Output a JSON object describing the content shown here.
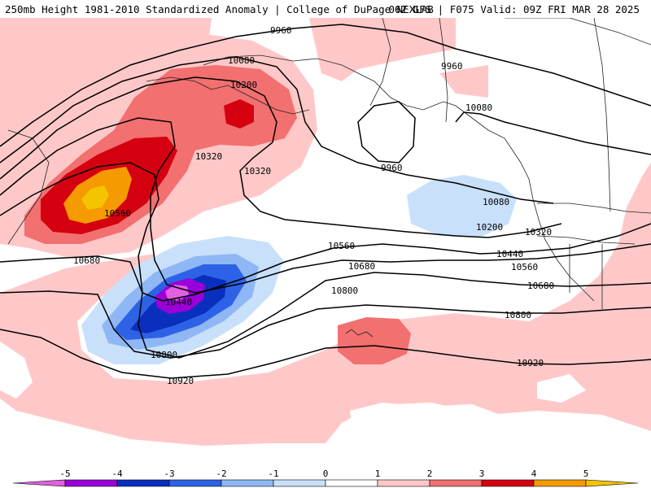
{
  "header": {
    "title": "250mb Height 1981-2010 Standardized Anomaly | College of DuPage NEXLAB",
    "run_info": "06Z GFS | F075 Valid: 09Z FRI MAR 28 2025"
  },
  "contour_labels": [
    "9960",
    "10080",
    "10200",
    "10320",
    "10440",
    "10560",
    "10680",
    "10800",
    "10920"
  ],
  "map_labels": {
    "l9960a": "9960",
    "l9960b": "9960",
    "l9960c": "9960",
    "l10080a": "10080",
    "l10080b": "10080",
    "l10080c": "10080",
    "l10200a": "10200",
    "l10200b": "10200",
    "l10320a": "10320",
    "l10320b": "10320",
    "l10320c": "10320",
    "l10440a": "10440",
    "l10440b": "10440",
    "l10560a": "10560",
    "l10560b": "10560",
    "l10560c": "10560",
    "l10680a": "10680",
    "l10680b": "10680",
    "l10680c": "10680",
    "l10800a": "10800",
    "l10800b": "10800",
    "l10800c": "10800",
    "l10920a": "10920",
    "l10920b": "10920"
  },
  "colorbar": {
    "ticks": [
      "-5",
      "-4",
      "-3",
      "-2",
      "-1",
      "0",
      "1",
      "2",
      "3",
      "4",
      "5"
    ],
    "colors": [
      "#e060e0",
      "#9a00d8",
      "#0a2fbf",
      "#2e62e6",
      "#8fb7f5",
      "#c9e0fa",
      "#ffffff",
      "#ffc8c8",
      "#f27070",
      "#d40010",
      "#f59a00",
      "#f5c400"
    ]
  },
  "anomaly_colors": {
    "pos1": "#ffc8c8",
    "pos2": "#f27070",
    "pos3": "#d40010",
    "pos4": "#f59a00",
    "pos5": "#f5c400",
    "neg1": "#c9e0fa",
    "neg2": "#8fb7f5",
    "neg3": "#2e62e6",
    "neg4": "#0a2fbf",
    "neg5": "#9a00d8",
    "neg6": "#e060e0"
  }
}
